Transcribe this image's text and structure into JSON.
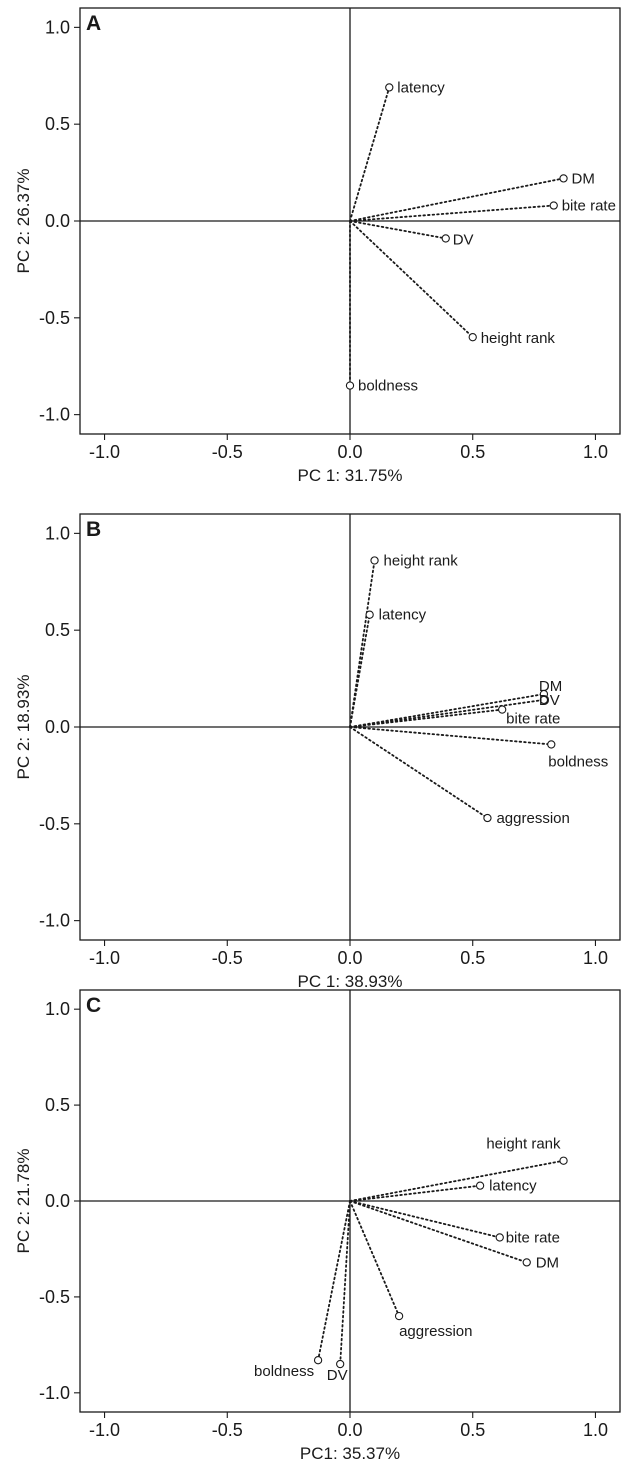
{
  "chart_data": [
    {
      "type": "scatter",
      "panel": "A",
      "xlabel": "PC 1: 31.75%",
      "ylabel": "PC 2: 26.37%",
      "xlim": [
        -1.1,
        1.1
      ],
      "ylim": [
        -1.1,
        1.1
      ],
      "xticks": [
        -1.0,
        -0.5,
        0.0,
        0.5,
        1.0
      ],
      "yticks": [
        1.0,
        0.5,
        0.0,
        -0.5,
        -1.0
      ],
      "xtick_labels": [
        "-1.0",
        "-0.5",
        "0.0",
        "0.5",
        "1.0"
      ],
      "ytick_labels": [
        "1.0",
        "0.5",
        "0.0",
        "-0.5",
        "-1.0"
      ],
      "points": [
        {
          "name": "latency",
          "x": 0.16,
          "y": 0.69
        },
        {
          "name": "DM",
          "x": 0.87,
          "y": 0.22
        },
        {
          "name": "bite rate",
          "x": 0.83,
          "y": 0.08
        },
        {
          "name": "DV",
          "x": 0.39,
          "y": -0.09
        },
        {
          "name": "height rank",
          "x": 0.5,
          "y": -0.6
        },
        {
          "name": "boldness",
          "x": 0.0,
          "y": -0.85
        }
      ]
    },
    {
      "type": "scatter",
      "panel": "B",
      "xlabel": "PC 1: 38.93%",
      "ylabel": "PC 2: 18.93%",
      "xlim": [
        -1.1,
        1.1
      ],
      "ylim": [
        -1.1,
        1.1
      ],
      "xticks": [
        -1.0,
        -0.5,
        0.0,
        0.5,
        1.0
      ],
      "yticks": [
        1.0,
        0.5,
        0.0,
        -0.5,
        -1.0
      ],
      "xtick_labels": [
        "-1.0",
        "-0.5",
        "0.0",
        "0.5",
        "1.0"
      ],
      "ytick_labels": [
        "1.0",
        "0.5",
        "0.0",
        "-0.5",
        "-1.0"
      ],
      "points": [
        {
          "name": "height rank",
          "x": 0.1,
          "y": 0.86
        },
        {
          "name": "latency",
          "x": 0.08,
          "y": 0.58
        },
        {
          "name": "DM",
          "x": 0.79,
          "y": 0.17
        },
        {
          "name": "DV",
          "x": 0.79,
          "y": 0.14
        },
        {
          "name": "bite rate",
          "x": 0.62,
          "y": 0.09
        },
        {
          "name": "boldness",
          "x": 0.82,
          "y": -0.09
        },
        {
          "name": "aggression",
          "x": 0.56,
          "y": -0.47
        }
      ]
    },
    {
      "type": "scatter",
      "panel": "C",
      "xlabel": "PC1: 35.37%",
      "ylabel": "PC 2: 21.78%",
      "xlim": [
        -1.1,
        1.1
      ],
      "ylim": [
        -1.1,
        1.1
      ],
      "xticks": [
        -1.0,
        -0.5,
        0.0,
        0.5,
        1.0
      ],
      "yticks": [
        1.0,
        0.5,
        0.0,
        -0.5,
        -1.0
      ],
      "xtick_labels": [
        "-1.0",
        "-0.5",
        "0.0",
        "0.5",
        "1.0"
      ],
      "ytick_labels": [
        "1.0",
        "0.5",
        "0.0",
        "-0.5",
        "-1.0"
      ],
      "points": [
        {
          "name": "height rank",
          "x": 0.87,
          "y": 0.21
        },
        {
          "name": "latency",
          "x": 0.53,
          "y": 0.08
        },
        {
          "name": "bite rate",
          "x": 0.61,
          "y": -0.19
        },
        {
          "name": "DM",
          "x": 0.72,
          "y": -0.32
        },
        {
          "name": "aggression",
          "x": 0.2,
          "y": -0.6
        },
        {
          "name": "boldness",
          "x": -0.13,
          "y": -0.83
        },
        {
          "name": "DV",
          "x": -0.04,
          "y": -0.85
        }
      ]
    }
  ]
}
